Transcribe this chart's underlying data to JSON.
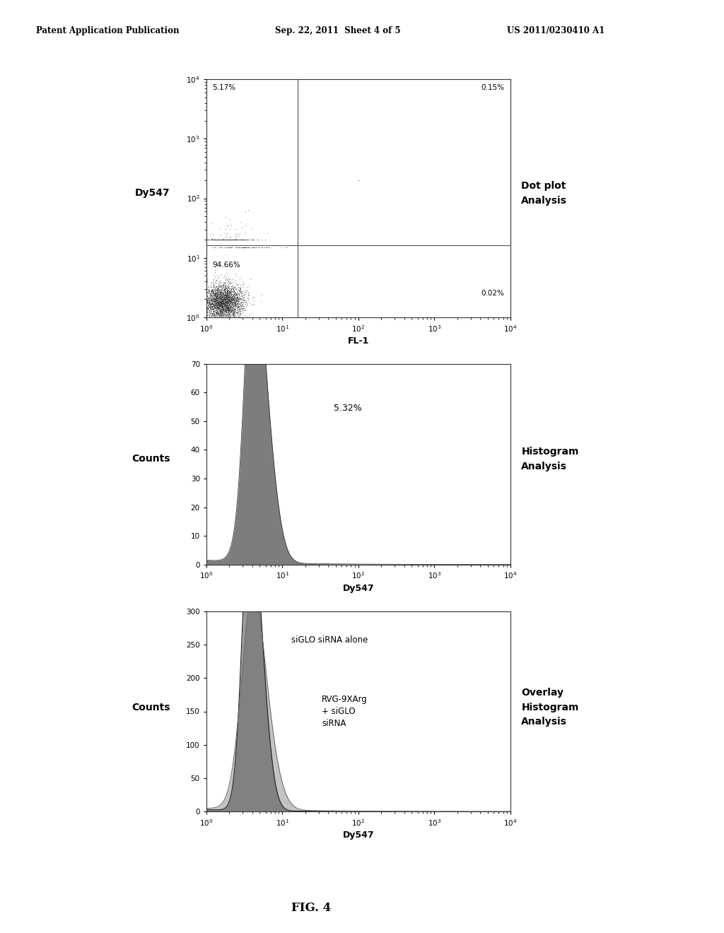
{
  "header_left": "Patent Application Publication",
  "header_center": "Sep. 22, 2011  Sheet 4 of 5",
  "header_right": "US 2011/0230410 A1",
  "fig_label": "FIG. 4",
  "panel1": {
    "ylabel": "Dy547",
    "xlabel": "FL-1",
    "label_right": "Dot plot\nAnalysis",
    "quadrant_labels": [
      "5.17%",
      "0.15%",
      "94.66%",
      "0.02%"
    ]
  },
  "panel2": {
    "ylabel": "Counts",
    "xlabel": "Dy547",
    "label_right": "Histogram\nAnalysis",
    "annotation": "5.32%",
    "ylim": [
      0,
      70
    ],
    "yticks": [
      0,
      10,
      20,
      30,
      40,
      50,
      60,
      70
    ]
  },
  "panel3": {
    "ylabel": "Counts",
    "xlabel": "Dy547",
    "label_right": "Overlay\nHistogram\nAnalysis",
    "label1": "siGLO siRNA alone",
    "label2": "RVG-9XArg\n+ siGLO\nsiRNA",
    "ylim": [
      0,
      300
    ],
    "yticks": [
      0,
      50,
      100,
      150,
      200,
      250,
      300
    ]
  },
  "bg_color": "#ffffff"
}
